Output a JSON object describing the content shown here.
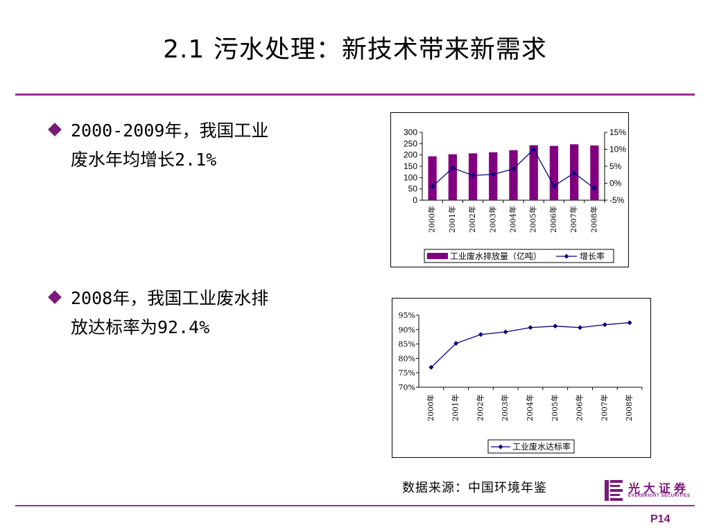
{
  "title": "2.1 污水处理：新技术带来新需求",
  "bullets": [
    {
      "line1": "2000-2009年，我国工业",
      "line2": "废水年均增长2.1%"
    },
    {
      "line1": "2008年，我国工业废水排",
      "line2": "放达标率为92.4%"
    }
  ],
  "source": "数据来源：中国环境年鉴",
  "logo": {
    "cn": "光大证券",
    "en": "EVERBRIGHT SECURITIES",
    "icon": "everbright-logo-icon"
  },
  "page_number": "P14",
  "colors": {
    "accent": "#9b2b8f",
    "bar": "#800080",
    "line": "#000080"
  },
  "chart_data": [
    {
      "type": "bar",
      "categories": [
        "2000年",
        "2001年",
        "2002年",
        "2003年",
        "2004年",
        "2005年",
        "2006年",
        "2007年",
        "2008年"
      ],
      "series": [
        {
          "name": "工业废水排放量（亿吨）",
          "type": "bar",
          "axis": "left",
          "values": [
            194,
            203,
            207,
            212,
            221,
            243,
            240,
            247,
            242
          ]
        },
        {
          "name": "增长率",
          "type": "line",
          "axis": "right",
          "values": [
            -1.0,
            4.5,
            2.3,
            2.6,
            4.2,
            10.0,
            -0.8,
            3.0,
            -1.5
          ]
        }
      ],
      "y_left": {
        "ylim": [
          0,
          300
        ],
        "ticks": [
          "300",
          "250",
          "200",
          "150",
          "100",
          "50",
          "0"
        ]
      },
      "y_right": {
        "ylim": [
          -5,
          15
        ],
        "ticks": [
          "15%",
          "10%",
          "5%",
          "0%",
          "-5%"
        ]
      },
      "legend": "bottom"
    },
    {
      "type": "line",
      "categories": [
        "2000年",
        "2001年",
        "2002年",
        "2003年",
        "2004年",
        "2005年",
        "2006年",
        "2007年",
        "2008年"
      ],
      "series": [
        {
          "name": "工业废水达标率",
          "values": [
            76.9,
            85.2,
            88.3,
            89.2,
            90.7,
            91.2,
            90.7,
            91.7,
            92.4
          ]
        }
      ],
      "ylim": [
        70,
        95
      ],
      "yticks": [
        "95%",
        "90%",
        "85%",
        "80%",
        "75%",
        "70%"
      ],
      "legend": "bottom"
    }
  ]
}
